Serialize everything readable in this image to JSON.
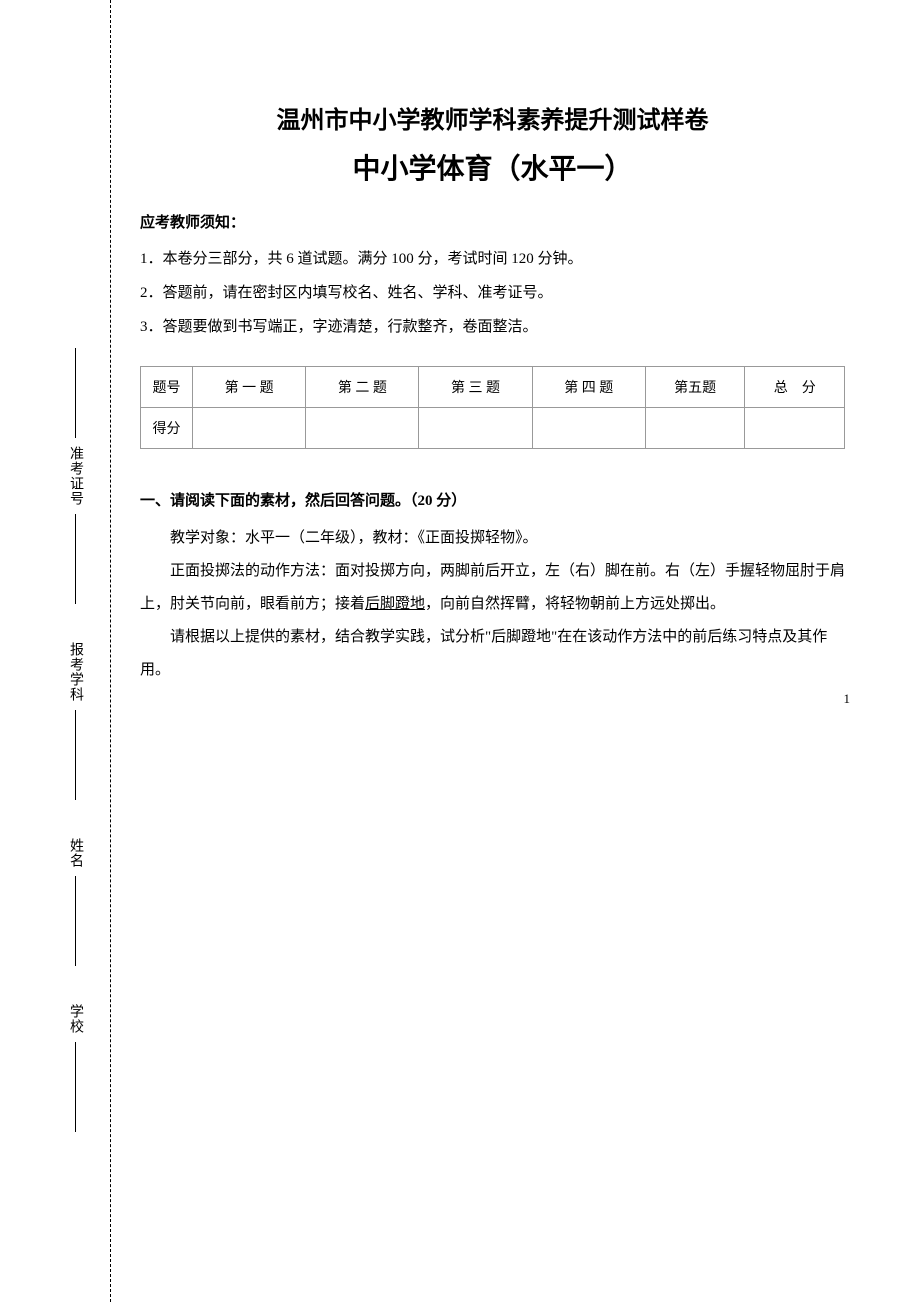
{
  "sidebar": {
    "labels": [
      "准考证号",
      "报考学科",
      "姓名",
      "学校"
    ]
  },
  "title": "温州市中小学教师学科素养提升测试样卷",
  "subtitle": "中小学体育（水平一）",
  "notice": {
    "head": "应考教师须知：",
    "items": [
      "1．本卷分三部分，共 6 道试题。满分 100 分，考试时间 120 分钟。",
      "2．答题前，请在密封区内填写校名、姓名、学科、准考证号。",
      "3．答题要做到书写端正，字迹清楚，行款整齐，卷面整洁。"
    ]
  },
  "table": {
    "headers": [
      "题号",
      "第 一 题",
      "第 二 题",
      "第 三 题",
      "第 四 题",
      "第五题",
      "总　分"
    ],
    "row_label": "得分"
  },
  "section1": {
    "title": "一、请阅读下面的素材，然后回答问题。（20 分）",
    "p1": "教学对象：水平一（二年级），教材：《正面投掷轻物》。",
    "p2a": "正面投掷法的动作方法：面对投掷方向，两脚前后开立，左（右）脚在前。右（左）手握轻物屈肘于肩上，肘关节向前，眼看前方；接着",
    "p2u": "后脚蹬地",
    "p2b": "，向前自然挥臂，将轻物朝前上方远处掷出。",
    "p3": "请根据以上提供的素材，结合教学实践，试分析\"后脚蹬地\"在在该动作方法中的前后练习特点及其作用。"
  },
  "page_number": "1"
}
